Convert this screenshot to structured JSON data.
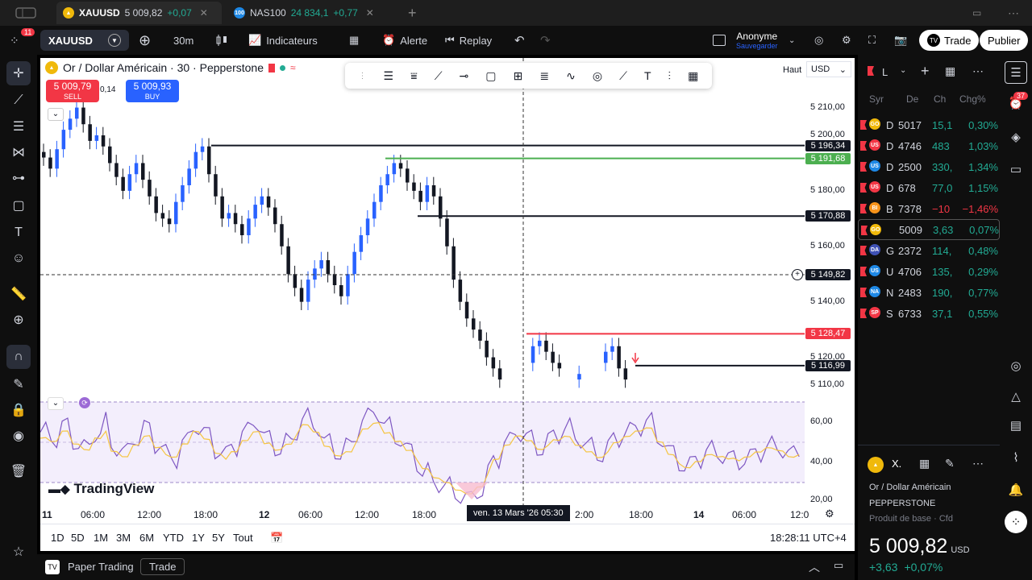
{
  "tabs": [
    {
      "symbol": "XAUUSD",
      "price": "5 009,82",
      "change": "+0,07",
      "icon": "gold-coin-icon",
      "color": "#f0b90b"
    },
    {
      "symbol": "NAS100",
      "price": "24 834,1",
      "change": "+0,77",
      "icon": "nas100-icon",
      "color": "#1e88e5"
    }
  ],
  "toolbar": {
    "notifications": "11",
    "symbol": "XAUUSD",
    "interval": "30m",
    "indicators": "Indicateurs",
    "alert": "Alerte",
    "replay": "Replay",
    "account": "Anonyme",
    "account_sub": "Sauvegarder",
    "trade": "Trade",
    "publish": "Publier"
  },
  "chart_header": {
    "title": "Or / Dollar Américain · 30 · Pepperstone",
    "sell_price": "5 009,79",
    "sell_label": "SELL",
    "spread": "0,14",
    "buy_price": "5 009,93",
    "buy_label": "BUY",
    "scale_mode": "Haut",
    "currency": "USD"
  },
  "chart_data": {
    "type": "candlestick",
    "y_ticks": [
      "5 210,00",
      "5 200,00",
      "5 180,00",
      "5 160,00",
      "5 140,00",
      "5 120,00",
      "5 110,00"
    ],
    "y_tick_values": [
      5210,
      5200,
      5180,
      5160,
      5140,
      5120,
      5110
    ],
    "x_ticks": [
      "11",
      "06:00",
      "12:00",
      "18:00",
      "12",
      "06:00",
      "12:00",
      "18:00",
      "2:00",
      "18:00",
      "14",
      "06:00",
      "12:0"
    ],
    "levels": [
      {
        "value": "5 196,34",
        "color": "#131722"
      },
      {
        "value": "5 191,68",
        "color": "#4caf50"
      },
      {
        "value": "5 170,88",
        "color": "#131722"
      },
      {
        "value": "5 149,82",
        "color": "#131722"
      },
      {
        "value": "5 128,47",
        "color": "#f23645"
      },
      {
        "value": "5 116,99",
        "color": "#131722"
      }
    ],
    "crosshair_time": "ven. 13 Mars '26   05:30",
    "rsi_ticks": [
      "60,00",
      "40,00",
      "20,00"
    ]
  },
  "branding": "TradingView",
  "ranges": [
    "1D",
    "5D",
    "1M",
    "3M",
    "6M",
    "YTD",
    "1Y",
    "5Y",
    "Tout"
  ],
  "clock": "18:28:11 UTC+4",
  "paper": {
    "label": "Paper Trading",
    "trade": "Trade"
  },
  "watchlist": {
    "title": "L",
    "columns": [
      "Syr",
      "De",
      "Ch",
      "Chg%"
    ],
    "rows": [
      {
        "sym": "D",
        "last": "5017",
        "ch": "15,1",
        "chp": "0,30%",
        "dir": "pos",
        "icon": "gold-icon",
        "color": "#f0b90b"
      },
      {
        "sym": "D",
        "last": "4746",
        "ch": "483",
        "chp": "1,03%",
        "dir": "pos",
        "icon": "us30-icon",
        "color": "#f23645"
      },
      {
        "sym": "D",
        "last": "2500",
        "ch": "330,",
        "chp": "1,34%",
        "dir": "pos",
        "icon": "us100-icon",
        "color": "#1e88e5"
      },
      {
        "sym": "D",
        "last": "678",
        "ch": "77,0",
        "chp": "1,15%",
        "dir": "pos",
        "icon": "us500-icon",
        "color": "#f23645"
      },
      {
        "sym": "B",
        "last": "7378",
        "ch": "−10",
        "chp": "−1,46%",
        "dir": "neg",
        "icon": "bitcoin-icon",
        "color": "#f7931a"
      },
      {
        "sym": "",
        "last": "5009",
        "ch": "3,63",
        "chp": "0,07%",
        "dir": "pos",
        "icon": "gold-icon",
        "color": "#f0b90b"
      },
      {
        "sym": "G",
        "last": "2372",
        "ch": "114,",
        "chp": "0,48%",
        "dir": "pos",
        "icon": "dax-icon",
        "color": "#3f51b5"
      },
      {
        "sym": "U",
        "last": "4706",
        "ch": "135,",
        "chp": "0,29%",
        "dir": "pos",
        "icon": "us30-icon",
        "color": "#1e88e5"
      },
      {
        "sym": "N",
        "last": "2483",
        "ch": "190,",
        "chp": "0,77%",
        "dir": "pos",
        "icon": "nas100-icon",
        "color": "#1e88e5"
      },
      {
        "sym": "S",
        "last": "6733",
        "ch": "37,1",
        "chp": "0,55%",
        "dir": "pos",
        "icon": "sp500-icon",
        "color": "#f23645"
      }
    ]
  },
  "details": {
    "symbol": "X.",
    "name": "Or / Dollar Américain",
    "exchange": "PEPPERSTONE",
    "type": "Produit de base · Cfd",
    "price_main": "5 009,",
    "price_dec": "82",
    "currency": "USD",
    "change": "+3,63",
    "change_pct": "+0,07%"
  },
  "badges": {
    "alerts": "37"
  }
}
